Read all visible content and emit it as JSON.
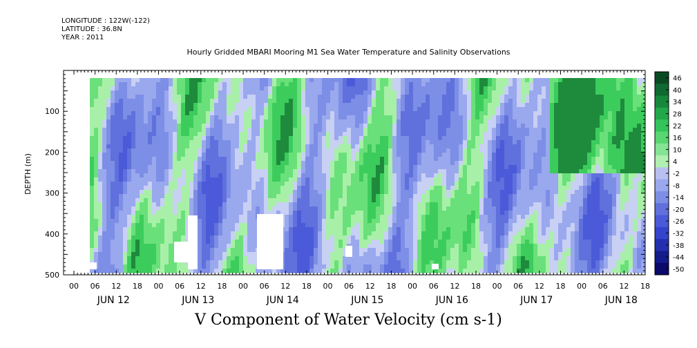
{
  "header": {
    "longitude": "LONGITUDE : 122W(-122)",
    "latitude": "LATITUDE : 36.8N",
    "year": "YEAR : 2011"
  },
  "chart_data": {
    "type": "heatmap",
    "title": "Hourly Gridded MBARI Mooring M1 Sea Water Temperature and Salinity Observations",
    "xlabel": "",
    "ylabel": "DEPTH (m)",
    "bottom_label": "V Component of Water Velocity (cm s-1)",
    "y_ticks": [
      "100",
      "200",
      "300",
      "400",
      "500"
    ],
    "y_range": [
      0,
      500
    ],
    "x_hour_ticks": [
      "00",
      "06",
      "12",
      "18",
      "00",
      "06",
      "12",
      "18",
      "00",
      "06",
      "12",
      "18",
      "00",
      "06",
      "12",
      "18",
      "00",
      "06",
      "12",
      "18",
      "00",
      "06",
      "12",
      "18",
      "00",
      "06",
      "12",
      "18"
    ],
    "x_day_labels": [
      "JUN 12",
      "JUN 13",
      "JUN 14",
      "JUN 15",
      "JUN 16",
      "JUN 17",
      "JUN 18"
    ],
    "colorbar_levels": [
      "46",
      "40",
      "34",
      "28",
      "22",
      "16",
      "10",
      "4",
      "-2",
      "-8",
      "-14",
      "-20",
      "-26",
      "-32",
      "-38",
      "-44",
      "-50"
    ],
    "colors": {
      "neg_strong": "#0c0c7a",
      "neg_mid": "#4a5ad8",
      "neg_light": "#9aa8ee",
      "pos_light": "#a8f0a8",
      "pos_mid": "#3ccc5c",
      "pos_strong": "#0a5a28"
    }
  }
}
